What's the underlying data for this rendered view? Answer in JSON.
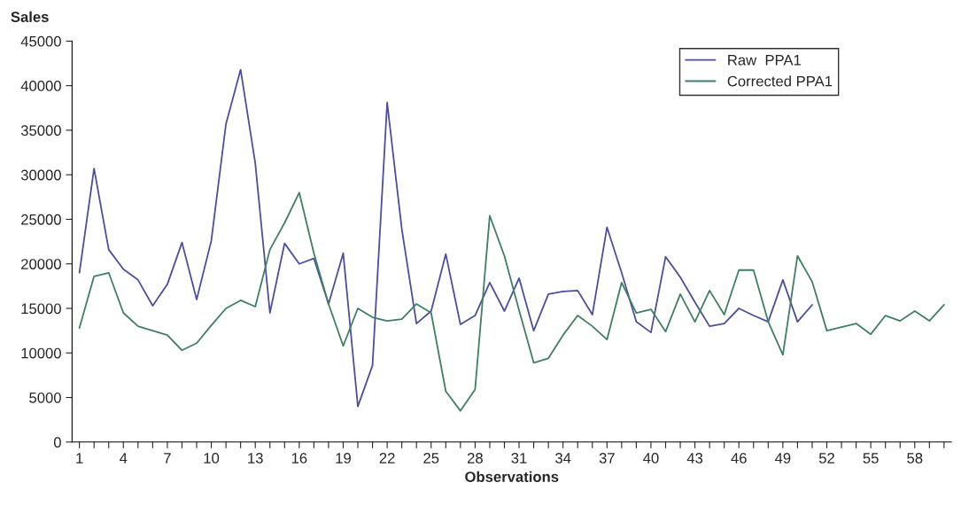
{
  "chart_data": {
    "type": "line",
    "ylabel": "Sales",
    "xlabel": "Observations",
    "categories": [
      "1",
      null,
      null,
      "4",
      null,
      null,
      "7",
      null,
      null,
      "10",
      null,
      null,
      "13",
      null,
      null,
      "16",
      null,
      null,
      "19",
      null,
      null,
      "22",
      null,
      null,
      "25",
      null,
      null,
      "28",
      null,
      null,
      "31",
      null,
      null,
      "34",
      null,
      null,
      "37",
      null,
      null,
      "40",
      null,
      null,
      "43",
      null,
      null,
      "46",
      null,
      null,
      "49",
      null,
      null,
      "52",
      null,
      null,
      "55",
      null,
      null,
      "58",
      null,
      null
    ],
    "series": [
      {
        "name": "Raw  PPA1",
        "color": "#4b4f9e",
        "values": [
          19000,
          30700,
          21600,
          19400,
          18200,
          15300,
          17700,
          22400,
          16000,
          22600,
          35700,
          41800,
          31300,
          14500,
          22300,
          20000,
          20600,
          15500,
          21200,
          4000,
          8600,
          38100,
          23900,
          13300,
          14700,
          21100,
          13200,
          14200,
          17900,
          14700,
          18400,
          12500,
          16600,
          16900,
          17000,
          14300,
          24100,
          19000,
          13500,
          12300,
          20800,
          18500,
          15700,
          13000,
          13300,
          15000,
          14200,
          13500,
          18200,
          13500,
          15400,
          null,
          null,
          null,
          null,
          null,
          null,
          null,
          null,
          null
        ]
      },
      {
        "name": "Corrected PPA1",
        "color": "#3f7f62",
        "values": [
          12800,
          18600,
          19000,
          14500,
          13000,
          12500,
          12000,
          10300,
          11100,
          13100,
          15000,
          15900,
          15200,
          21600,
          24600,
          28000,
          21200,
          15500,
          10800,
          15000,
          14000,
          13600,
          13800,
          15500,
          14500,
          5700,
          3500,
          5900,
          25400,
          20900,
          14800,
          8900,
          9400,
          12000,
          14200,
          13000,
          11500,
          17900,
          14500,
          14900,
          12400,
          16600,
          13500,
          17000,
          14300,
          19300,
          19300,
          13500,
          9800,
          20900,
          18000,
          12500,
          12900,
          13300,
          12100,
          14200,
          13600,
          14700,
          13600,
          15400
        ]
      }
    ],
    "ylim": [
      0,
      45000
    ],
    "yticks": [
      0,
      5000,
      10000,
      15000,
      20000,
      25000,
      30000,
      35000,
      40000,
      45000
    ],
    "legend": "top right",
    "grid": false
  }
}
